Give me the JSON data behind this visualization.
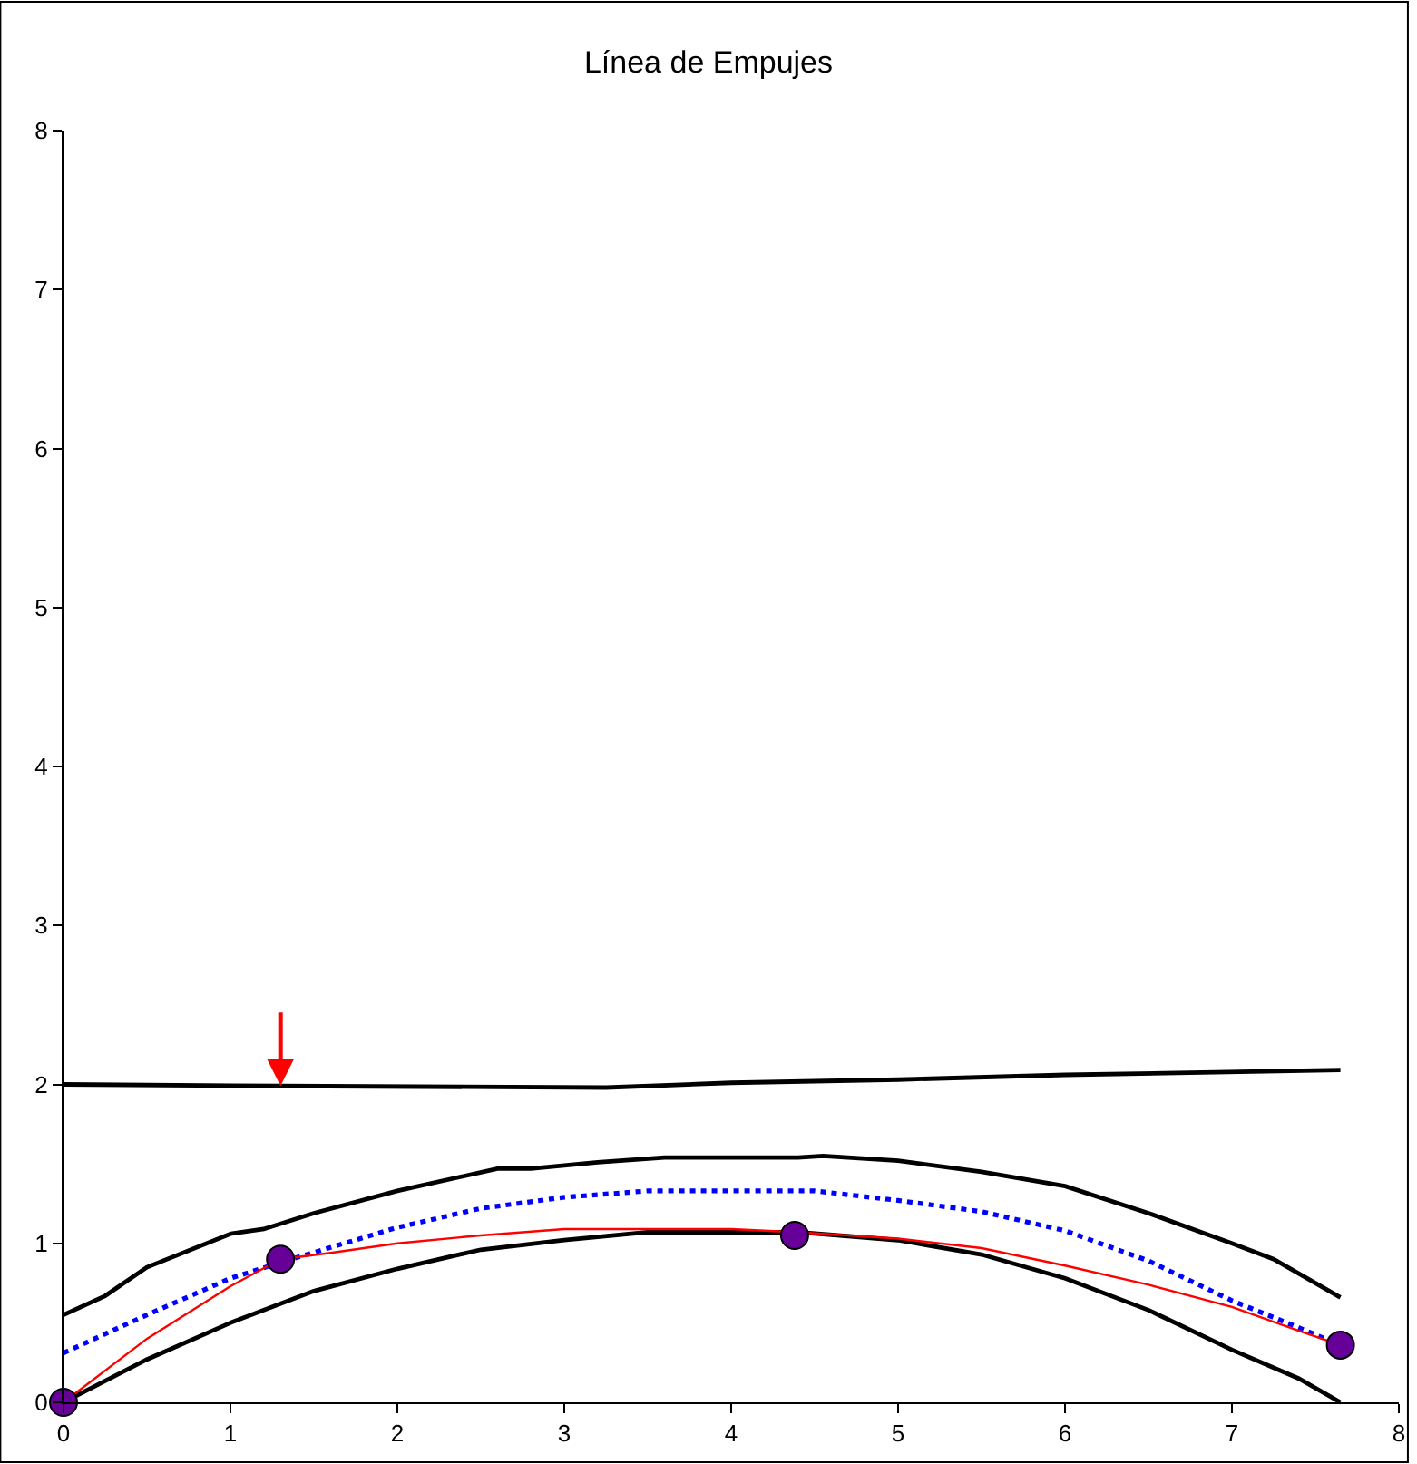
{
  "chart_data": {
    "type": "line",
    "title": "Línea de Empujes",
    "xlim": [
      0,
      8
    ],
    "ylim": [
      0,
      8
    ],
    "xticks": [
      0,
      1,
      2,
      3,
      4,
      5,
      6,
      7,
      8
    ],
    "yticks": [
      0,
      1,
      2,
      3,
      4,
      5,
      6,
      7,
      8
    ],
    "marker": "none",
    "series": [
      {
        "color": "#000000",
        "line_style": "solid",
        "x": [
          0,
          1.3,
          3.25,
          4,
          5,
          6,
          7.65
        ],
        "values": [
          2.0,
          1.99,
          1.98,
          2.01,
          2.03,
          2.06,
          2.09
        ]
      },
      {
        "color": "#000000",
        "line_style": "solid",
        "x": [
          0,
          0.25,
          0.5,
          1.0,
          1.2,
          1.5,
          2,
          2.6,
          2.8,
          3.2,
          3.6,
          4.4,
          4.55,
          5,
          5.5,
          6,
          6.5,
          7,
          7.25,
          7.65
        ],
        "values": [
          0.55,
          0.67,
          0.85,
          1.06,
          1.09,
          1.19,
          1.33,
          1.47,
          1.47,
          1.51,
          1.54,
          1.54,
          1.55,
          1.52,
          1.45,
          1.36,
          1.19,
          1.0,
          0.9,
          0.66
        ]
      },
      {
        "color": "#000000",
        "line_style": "solid",
        "x": [
          0,
          0.5,
          1,
          1.5,
          2,
          2.5,
          3,
          3.5,
          4,
          4.4,
          5,
          5.5,
          6,
          6.5,
          7,
          7.4,
          7.65
        ],
        "values": [
          0,
          0.27,
          0.5,
          0.7,
          0.84,
          0.96,
          1.02,
          1.07,
          1.07,
          1.07,
          1.02,
          0.93,
          0.78,
          0.58,
          0.33,
          0.15,
          0
        ]
      },
      {
        "color": "#0000ff",
        "line_style": "dotted",
        "x": [
          0,
          0.5,
          1,
          1.3,
          2,
          2.5,
          3,
          3.5,
          4,
          4.5,
          5,
          5.5,
          6,
          6.5,
          7,
          7.4,
          7.65
        ],
        "values": [
          0.31,
          0.55,
          0.78,
          0.88,
          1.1,
          1.22,
          1.29,
          1.33,
          1.33,
          1.33,
          1.27,
          1.2,
          1.08,
          0.89,
          0.64,
          0.47,
          0.36
        ]
      },
      {
        "color": "#ff0000",
        "line_style": "solid",
        "x": [
          0,
          0.5,
          1,
          1.3,
          1.6,
          2,
          2.5,
          3,
          3.5,
          4,
          4.4,
          5,
          5.5,
          6,
          6.5,
          7,
          7.4,
          7.65
        ],
        "values": [
          0,
          0.4,
          0.73,
          0.9,
          0.94,
          1.0,
          1.05,
          1.09,
          1.09,
          1.09,
          1.07,
          1.03,
          0.97,
          0.86,
          0.74,
          0.6,
          0.45,
          0.36
        ]
      },
      {
        "type": "scatter",
        "color": "#660099",
        "marker": "circle",
        "x": [
          0,
          1.3,
          4.38,
          7.65
        ],
        "values": [
          0,
          0.9,
          1.05,
          0.36
        ]
      }
    ]
  }
}
